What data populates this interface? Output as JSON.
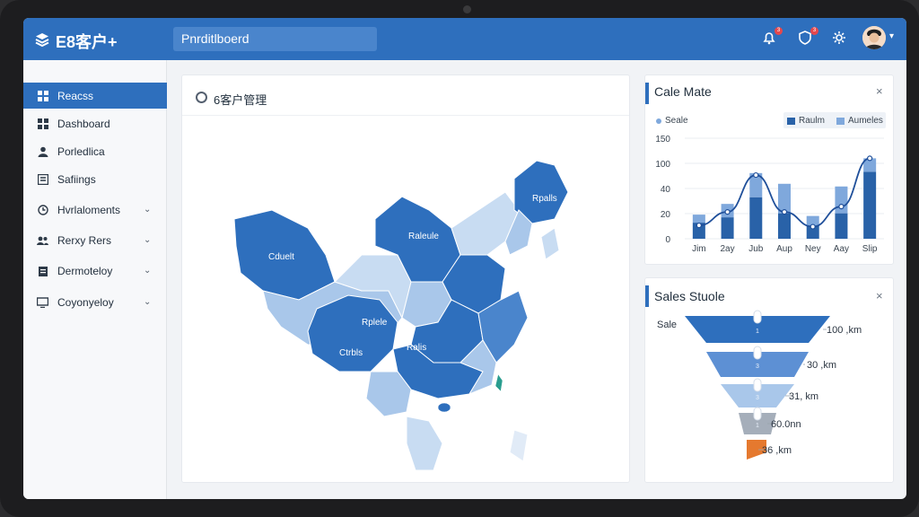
{
  "app": {
    "logo_text": "E8客户+"
  },
  "search": {
    "value": "Pnrditlboerd"
  },
  "topbar": {
    "badges": [
      "3",
      "3"
    ]
  },
  "sidebar": {
    "items": [
      {
        "label": "Reacss",
        "icon": "grid-icon",
        "active": true
      },
      {
        "label": "Dashboard",
        "icon": "grid-icon"
      },
      {
        "label": "Porledlica",
        "icon": "user-icon"
      },
      {
        "label": "Safiings",
        "icon": "document-icon"
      },
      {
        "label": "Hvrlaloments",
        "icon": "clock-icon",
        "chevron": true
      },
      {
        "label": "Rerxy Rers",
        "icon": "users-icon",
        "chevron": true
      },
      {
        "label": "Dermoteloy",
        "icon": "clipboard-icon",
        "chevron": true
      },
      {
        "label": "Coyonyeloy",
        "icon": "monitor-icon",
        "chevron": true
      }
    ]
  },
  "map_panel": {
    "title": "6客户管理",
    "region_labels": [
      "Cduelt",
      "Raleule",
      "Rpalls",
      "Rplele",
      "Ctrbls",
      "Ralis"
    ]
  },
  "sales_chart": {
    "title": "Cale Mate",
    "legend_left": "Seale",
    "close": "×",
    "colors": {
      "dark": "#2962a8",
      "light": "#7fa8dc",
      "line": "#1f4f9a"
    }
  },
  "chart_data": {
    "type": "bar",
    "categories": [
      "Jim",
      "2ay",
      "Jub",
      "Aup",
      "Ney",
      "Aay",
      "Slip"
    ],
    "y_ticks": [
      "150",
      "100",
      "40",
      "20",
      "0"
    ],
    "series": [
      {
        "name": "Raulm",
        "values": [
          24,
          32,
          62,
          38,
          20,
          38,
          100
        ]
      },
      {
        "name": "Aumeles",
        "values": [
          12,
          20,
          36,
          44,
          14,
          40,
          20
        ]
      }
    ],
    "line": [
      20,
      40,
      95,
      40,
      18,
      48,
      120
    ]
  },
  "funnel": {
    "title": "Sales Stuole",
    "left_label": "Sale",
    "close": "×",
    "stages": [
      {
        "label": "100 ,km",
        "color": "#2e6fbd",
        "num": "1"
      },
      {
        "label": "30 ,km",
        "color": "#5d90d4",
        "num": "3"
      },
      {
        "label": "31, km",
        "color": "#a9c7ea",
        "num": "3"
      },
      {
        "label": "60.0nn",
        "color": "#a5aeba",
        "num": "1"
      },
      {
        "label": "36 ,km",
        "color": "#e5792f",
        "num": ""
      }
    ]
  }
}
